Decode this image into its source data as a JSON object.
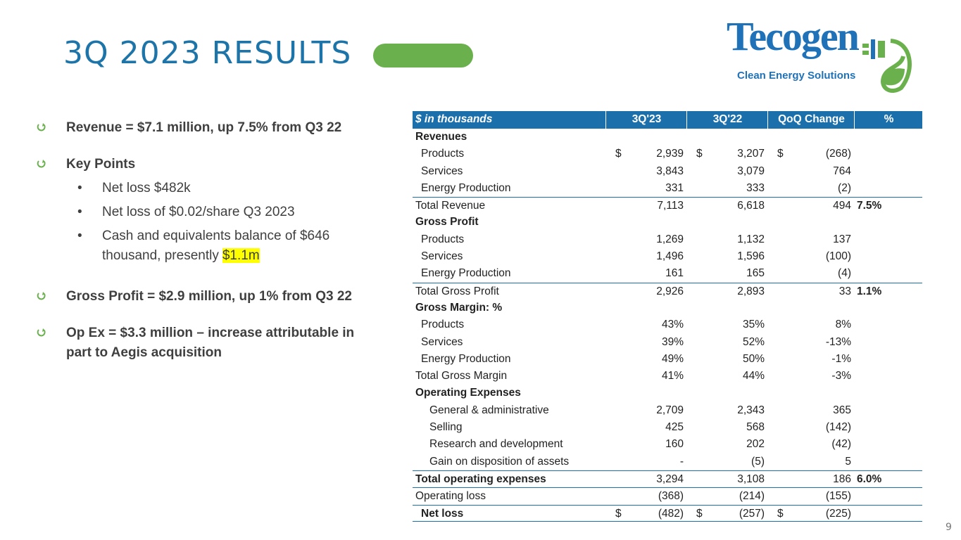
{
  "title": "3Q 2023 RESULTS",
  "logo": {
    "name": "Tecogen",
    "tagline": "Clean Energy Solutions"
  },
  "bullets": [
    {
      "text": "Revenue = $7.1 million, up 7.5% from Q3 22"
    },
    {
      "text": "Key Points",
      "sub": [
        {
          "text": "Net loss $482k"
        },
        {
          "text": "Net loss of $0.02/share Q3 2023"
        },
        {
          "text": "Cash and equivalents balance of $646 thousand, presently",
          "highlight": "$1.1m"
        }
      ]
    },
    {
      "text": "Gross Profit = $2.9 million, up 1% from Q3 22"
    },
    {
      "text": "Op Ex = $3.3 million – increase attributable in part to Aegis acquisition"
    }
  ],
  "table": {
    "header": [
      "$ in thousands",
      "3Q'23",
      "3Q'22",
      "QoQ Change",
      "%"
    ],
    "rows": [
      {
        "label": "Revenues",
        "kind": "section"
      },
      {
        "label": "Products",
        "kind": "item",
        "currency": "$",
        "values": [
          "2,939",
          "3,207",
          "(268)"
        ]
      },
      {
        "label": "Services",
        "kind": "item",
        "values": [
          "3,843",
          "3,079",
          "764"
        ]
      },
      {
        "label": "Energy Production",
        "kind": "item",
        "values": [
          "331",
          "333",
          "(2)"
        ]
      },
      {
        "label": "Total Revenue",
        "kind": "total",
        "values": [
          "7,113",
          "6,618",
          "494"
        ],
        "pct": "7.5%"
      },
      {
        "label": "Gross Profit",
        "kind": "section"
      },
      {
        "label": "Products",
        "kind": "item",
        "values": [
          "1,269",
          "1,132",
          "137"
        ]
      },
      {
        "label": "Services",
        "kind": "item",
        "values": [
          "1,496",
          "1,596",
          "(100)"
        ]
      },
      {
        "label": "Energy Production",
        "kind": "item",
        "values": [
          "161",
          "165",
          "(4)"
        ]
      },
      {
        "label": "Total Gross Profit",
        "kind": "total",
        "values": [
          "2,926",
          "2,893",
          "33"
        ],
        "pct": "1.1%"
      },
      {
        "label": "Gross Margin: %",
        "kind": "section"
      },
      {
        "label": "Products",
        "kind": "item",
        "values": [
          "43%",
          "35%",
          "8%"
        ]
      },
      {
        "label": "Services",
        "kind": "item",
        "values": [
          "39%",
          "52%",
          "-13%"
        ]
      },
      {
        "label": "Energy Production",
        "kind": "item",
        "values": [
          "49%",
          "50%",
          "-1%"
        ]
      },
      {
        "label": "Total Gross Margin",
        "kind": "plain",
        "values": [
          "41%",
          "44%",
          "-3%"
        ]
      },
      {
        "label": "Operating Expenses",
        "kind": "section"
      },
      {
        "label": "General & administrative",
        "kind": "subitem",
        "values": [
          "2,709",
          "2,343",
          "365"
        ]
      },
      {
        "label": "Selling",
        "kind": "subitem",
        "values": [
          "425",
          "568",
          "(142)"
        ]
      },
      {
        "label": "Research and development",
        "kind": "subitem",
        "values": [
          "160",
          "202",
          "(42)"
        ]
      },
      {
        "label": "Gain on disposition of assets",
        "kind": "subitem",
        "values": [
          "-",
          "(5)",
          "5"
        ]
      },
      {
        "label": "Total operating expenses",
        "kind": "boldtotal",
        "values": [
          "3,294",
          "3,108",
          "186"
        ],
        "pct": "6.0%"
      },
      {
        "label": "Operating loss",
        "kind": "total",
        "values": [
          "(368)",
          "(214)",
          "(155)"
        ]
      },
      {
        "label": "Net loss",
        "kind": "final",
        "currency": "$",
        "values": [
          "(482)",
          "(257)",
          "(225)"
        ]
      }
    ]
  },
  "page_number": "9"
}
